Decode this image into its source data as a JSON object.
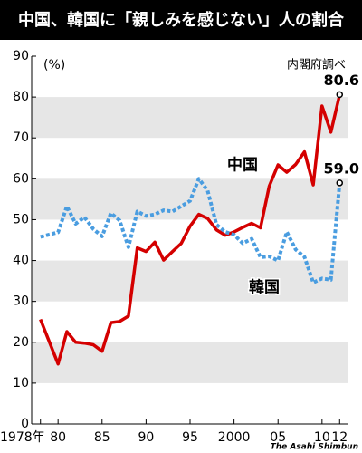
{
  "chart_data": {
    "type": "line",
    "title": "中国、韓国に「親しみを感じない」人の割合",
    "ylabel": "(%)",
    "source": "内閣府調べ",
    "credit": "The Asahi Shimbun",
    "x": [
      1978,
      1980,
      1981,
      1982,
      1983,
      1984,
      1985,
      1986,
      1987,
      1988,
      1989,
      1990,
      1991,
      1992,
      1993,
      1994,
      1995,
      1996,
      1997,
      1998,
      1999,
      2000,
      2001,
      2002,
      2003,
      2004,
      2005,
      2006,
      2007,
      2008,
      2009,
      2010,
      2011,
      2012
    ],
    "series": [
      {
        "name": "中国",
        "color": "#d40000",
        "dashed": false,
        "end_label": "80.6",
        "values": [
          25.6,
          14.7,
          22.6,
          20.0,
          19.8,
          19.4,
          17.8,
          24.8,
          25.1,
          26.4,
          43.1,
          42.2,
          44.5,
          40.1,
          42.2,
          44.2,
          48.4,
          51.3,
          50.3,
          47.5,
          46.2,
          47.0,
          48.1,
          49.1,
          48.0,
          58.2,
          63.4,
          61.6,
          63.5,
          66.6,
          58.5,
          77.8,
          71.4,
          80.6
        ]
      },
      {
        "name": "韓国",
        "color": "#4a9de0",
        "dashed": true,
        "end_label": "59.0",
        "values": [
          45.8,
          46.9,
          53.3,
          49.0,
          50.6,
          47.7,
          45.9,
          51.6,
          49.8,
          43.3,
          52.0,
          50.9,
          51.3,
          52.3,
          52.0,
          53.3,
          54.6,
          60.0,
          57.1,
          48.8,
          47.0,
          46.3,
          44.2,
          45.3,
          40.8,
          41.0,
          40.0,
          47.0,
          42.7,
          40.9,
          34.6,
          35.6,
          35.3,
          59.0
        ]
      }
    ],
    "xlim": [
      1977,
      2013
    ],
    "xticks": [
      {
        "value": 1978,
        "label": "1978年"
      },
      {
        "value": 1980,
        "label": "80"
      },
      {
        "value": 1985,
        "label": "85"
      },
      {
        "value": 1990,
        "label": "90"
      },
      {
        "value": 1995,
        "label": "95"
      },
      2000,
      {
        "value": 2005,
        "label": "05"
      },
      {
        "value": 2010,
        "label": "10"
      },
      {
        "value": 2012,
        "label": "12"
      }
    ],
    "ylim": [
      0,
      90
    ],
    "yticks": [
      0,
      10,
      20,
      30,
      40,
      50,
      60,
      70,
      80,
      90
    ],
    "grid": true
  }
}
